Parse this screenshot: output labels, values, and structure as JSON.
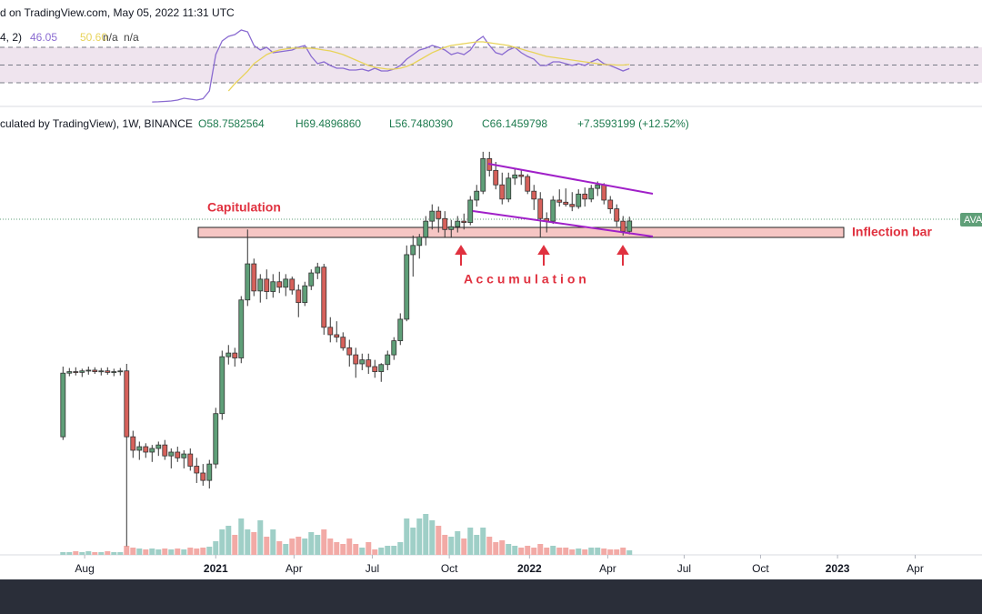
{
  "header": {
    "source": "d on TradingView.com, May 05, 2022 11:31 UTC",
    "ohlc_prefix": "culated by TradingView), 1W, BINANCE",
    "open": "O58.7582564",
    "high": "H69.4896860",
    "low": "L56.7480390",
    "close": "C66.1459798",
    "change": "+7.3593199 (+12.52%)",
    "symbol_tag": "AVA"
  },
  "chart_data": [
    {
      "type": "candlestick",
      "log_scale": true,
      "x": [
        0,
        1,
        2,
        3,
        4,
        5,
        6,
        7,
        8,
        9,
        10,
        11,
        12,
        13,
        14,
        15,
        16,
        17,
        18,
        19,
        20,
        21,
        22,
        23,
        24,
        25,
        26,
        27,
        28,
        29,
        30,
        31,
        32,
        33,
        34,
        35,
        36,
        37,
        38,
        39,
        40,
        41,
        42,
        43,
        44,
        45,
        46,
        47,
        48,
        49,
        50,
        51,
        52,
        53,
        54,
        55,
        56,
        57,
        58,
        59,
        60,
        61,
        62,
        63,
        64,
        65,
        66,
        67,
        68,
        69,
        70,
        71,
        72,
        73,
        74,
        75,
        76,
        77,
        78,
        79,
        80,
        81,
        82,
        83,
        84,
        85,
        86,
        87,
        88,
        89
      ],
      "open": [
        5.6,
        11.6,
        11.8,
        11.7,
        11.9,
        12.0,
        11.8,
        11.9,
        11.7,
        11.8,
        11.9,
        5.6,
        4.8,
        5.0,
        4.7,
        4.9,
        5.1,
        4.5,
        4.7,
        4.4,
        4.6,
        4.0,
        3.7,
        3.4,
        4.1,
        7.3,
        14,
        14.6,
        13.8,
        26.8,
        40.5,
        29.7,
        34,
        29.5,
        33,
        31,
        34,
        30,
        26,
        31.5,
        36.5,
        39,
        19.6,
        18,
        17.5,
        15.5,
        14.3,
        12.9,
        13.5,
        12.5,
        11.8,
        12.8,
        14.3,
        16.8,
        21.5,
        45,
        50,
        55,
        66,
        74,
        68,
        60,
        62,
        66,
        65,
        84,
        93,
        135,
        118,
        100,
        85,
        108,
        112,
        110,
        93,
        85,
        68,
        66,
        84,
        82,
        80,
        78,
        90,
        85,
        96,
        100,
        84,
        76,
        66,
        58.7582564
      ],
      "high": [
        12.5,
        12.3,
        12.4,
        12.2,
        12.5,
        12.4,
        12.3,
        12.4,
        12.2,
        12.3,
        12.9,
        6.0,
        5.3,
        5.2,
        5.1,
        5.3,
        5.4,
        4.9,
        5.0,
        4.8,
        4.9,
        4.4,
        4.1,
        4.3,
        7.8,
        15,
        16,
        15.5,
        28,
        60,
        43,
        36,
        38,
        36,
        37,
        36,
        35,
        32,
        33,
        38,
        41,
        40.5,
        22,
        21,
        18.5,
        17,
        15.5,
        14.5,
        14.5,
        13.5,
        13,
        15,
        17.5,
        23,
        50,
        56,
        57,
        70,
        80,
        78,
        74,
        67,
        70,
        72,
        88,
        100,
        146,
        146,
        130,
        115,
        115,
        120,
        118,
        113,
        100,
        92,
        73,
        88,
        95,
        96,
        92,
        95,
        97,
        100,
        104,
        102,
        88,
        80,
        70,
        69.489686
      ],
      "low": [
        5.4,
        11.2,
        11.3,
        11.1,
        11.4,
        11.5,
        11.3,
        11.4,
        11.2,
        11.3,
        1.6,
        4.4,
        4.3,
        4.4,
        4.2,
        4.5,
        4.3,
        3.9,
        4.2,
        3.9,
        3.8,
        3.3,
        3.2,
        3.1,
        3.9,
        6.8,
        12.8,
        12.5,
        13,
        25,
        28,
        26,
        27,
        27.5,
        29,
        28,
        28.5,
        22,
        25,
        30,
        34,
        18,
        16.5,
        16.5,
        15,
        12.5,
        11,
        12,
        11.5,
        11,
        10.5,
        12,
        13.5,
        16,
        21,
        35,
        43,
        50,
        60,
        58,
        55,
        55,
        58,
        60,
        63,
        78,
        90,
        110,
        95,
        80,
        82,
        100,
        100,
        90,
        75,
        55,
        58,
        64,
        78,
        78,
        74,
        76,
        78,
        82,
        88,
        80,
        72,
        62,
        56,
        56.748039
      ],
      "close": [
        11.6,
        11.8,
        11.7,
        11.9,
        12.0,
        11.8,
        11.9,
        11.7,
        11.8,
        11.9,
        5.6,
        4.8,
        5.0,
        4.7,
        4.9,
        5.1,
        4.5,
        4.7,
        4.4,
        4.6,
        4.0,
        3.7,
        3.4,
        4.1,
        7.3,
        14,
        14.6,
        13.8,
        26.8,
        40.5,
        29.7,
        34,
        29.5,
        33,
        31,
        34,
        30,
        26,
        31.5,
        36.5,
        39,
        19.6,
        18,
        17.5,
        15.5,
        14.3,
        12.9,
        13.5,
        12.5,
        11.8,
        12.8,
        14.3,
        16.8,
        21.5,
        45,
        50,
        55,
        66,
        74,
        68,
        60,
        62,
        66,
        65,
        84,
        93,
        135,
        118,
        100,
        85,
        108,
        112,
        110,
        93,
        85,
        68,
        66,
        84,
        82,
        80,
        78,
        90,
        85,
        96,
        100,
        84,
        76,
        66,
        58.7582564,
        66.1459798
      ],
      "volume": [
        3,
        3,
        4,
        3,
        4,
        3,
        3,
        4,
        3,
        3,
        10,
        8,
        7,
        6,
        7,
        6,
        7,
        6,
        7,
        6,
        8,
        7,
        8,
        9,
        15,
        28,
        32,
        22,
        40,
        28,
        25,
        38,
        20,
        28,
        15,
        12,
        18,
        20,
        18,
        25,
        22,
        28,
        18,
        14,
        12,
        18,
        12,
        8,
        14,
        6,
        8,
        10,
        10,
        14,
        40,
        30,
        40,
        45,
        38,
        32,
        22,
        20,
        26,
        18,
        30,
        22,
        30,
        20,
        14,
        16,
        12,
        10,
        8,
        10,
        8,
        12,
        8,
        10,
        8,
        8,
        6,
        7,
        6,
        8,
        8,
        7,
        6,
        6,
        8,
        5
      ],
      "up_color": "#5f9f78",
      "down_color": "#d6615b",
      "up_volume_color": "#9fcfc7",
      "down_volume_color": "#f2aaa6",
      "ylim": [
        1.45,
        174
      ],
      "vlim": [
        0,
        100
      ],
      "xlim": [
        -9.9,
        144.4
      ],
      "xticks": [
        {
          "value": 3.4,
          "label": "Aug"
        },
        {
          "value": 24,
          "label": "2021"
        },
        {
          "value": 36.3,
          "label": "Apr"
        },
        {
          "value": 48.6,
          "label": "Jul"
        },
        {
          "value": 60.7,
          "label": "Oct"
        },
        {
          "value": 73.3,
          "label": "2022"
        },
        {
          "value": 85.6,
          "label": "Apr"
        },
        {
          "value": 97.6,
          "label": "Jul"
        },
        {
          "value": 109.6,
          "label": "Oct"
        },
        {
          "value": 121.7,
          "label": "2023"
        },
        {
          "value": 133.9,
          "label": "Apr"
        }
      ],
      "annotations": {
        "capitulation": "Capitulation",
        "inflection": "Inflection bar",
        "accumulation": "A c c u m u l a t i o n"
      }
    },
    {
      "type": "line",
      "legend_prefix": "4, 2)",
      "legend_na1": "n/a",
      "legend_na2": "n/a",
      "ylim": [
        0,
        100
      ],
      "bands": [
        70,
        50,
        30
      ],
      "series": [
        {
          "name": "46.05",
          "color": "#8a6bd1",
          "values": [
            null,
            null,
            null,
            null,
            null,
            null,
            null,
            null,
            null,
            null,
            null,
            null,
            null,
            null,
            8.4,
            8.6,
            9,
            9.5,
            10.5,
            12.6,
            11.5,
            10.5,
            12,
            20.8,
            61.8,
            77.2,
            82.3,
            84.4,
            89.5,
            87.4,
            72,
            66.9,
            70,
            63.9,
            64.9,
            65.9,
            66.9,
            70,
            72,
            59.7,
            51.5,
            53.6,
            49.5,
            46.4,
            46.4,
            44.4,
            44.4,
            45.4,
            43.3,
            46.4,
            43.3,
            43.3,
            45.4,
            49.5,
            56.7,
            61.8,
            66.9,
            69,
            72,
            70,
            66.9,
            61.8,
            63.9,
            61.8,
            66.9,
            77.2,
            82.3,
            72,
            63.9,
            61.8,
            66.9,
            70,
            63.9,
            59.7,
            56.7,
            49.5,
            49.5,
            53.6,
            53.6,
            51.5,
            49.5,
            51.5,
            49.5,
            53.6,
            56.7,
            51.5,
            49.5,
            46.4,
            43.3,
            46.05
          ]
        },
        {
          "name": "50.60",
          "color": "#e8d35a",
          "values": [
            null,
            null,
            null,
            null,
            null,
            null,
            null,
            null,
            null,
            null,
            null,
            null,
            null,
            null,
            null,
            null,
            null,
            null,
            null,
            null,
            null,
            null,
            null,
            null,
            null,
            null,
            20.8,
            29,
            36,
            43,
            51.5,
            56.7,
            61.8,
            64.9,
            66.9,
            68,
            69,
            69,
            69,
            69,
            68,
            66.9,
            65.9,
            63.9,
            61.8,
            58.7,
            55.6,
            52.6,
            49.5,
            47.4,
            46.4,
            45.4,
            45.4,
            46.4,
            48.5,
            51.5,
            55.6,
            59.7,
            63.9,
            66.9,
            70,
            72,
            73.1,
            74.1,
            75.1,
            76.2,
            76.2,
            75.1,
            74.1,
            73.1,
            72,
            70,
            68,
            65.9,
            63.9,
            61.8,
            59.7,
            58.7,
            57.7,
            56.7,
            55.6,
            54.6,
            53.6,
            52.6,
            51.5,
            50.5,
            50.5,
            50,
            50,
            50.6
          ]
        }
      ]
    }
  ]
}
